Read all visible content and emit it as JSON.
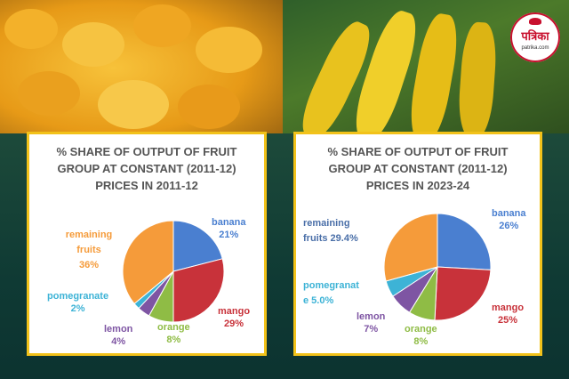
{
  "brand": {
    "name": "पत्रिका",
    "url": "patrika.com"
  },
  "colors": {
    "banana": "#4a7fd0",
    "mango": "#c8323a",
    "orange": "#8fbc45",
    "lemon": "#7e55a3",
    "pomegranate": "#3db3d6",
    "remaining": "#f59b3a",
    "card_border": "#f2c21a"
  },
  "chart_data": [
    {
      "type": "pie",
      "title": "% SHARE OF OUTPUT OF FRUIT GROUP AT CONSTANT (2011-12) PRICES IN 2011-12",
      "title_lines": [
        "% SHARE OF OUTPUT OF FRUIT",
        "GROUP AT CONSTANT (2011-12)",
        "PRICES IN 2011-12"
      ],
      "slices": [
        {
          "key": "banana",
          "name": "banana",
          "value": 21,
          "label": "21%"
        },
        {
          "key": "mango",
          "name": "mango",
          "value": 29,
          "label": "29%"
        },
        {
          "key": "orange",
          "name": "orange",
          "value": 8,
          "label": "8%"
        },
        {
          "key": "lemon",
          "name": "lemon",
          "value": 4,
          "label": "4%"
        },
        {
          "key": "pomegranate",
          "name": "pomegranate",
          "value": 2,
          "label": "2%"
        },
        {
          "key": "remaining",
          "name": "remaining fruits",
          "value": 36,
          "label": "36%"
        }
      ]
    },
    {
      "type": "pie",
      "title": "% SHARE OF OUTPUT OF FRUIT GROUP AT CONSTANT (2011-12) PRICES IN 2023-24",
      "title_lines": [
        "% SHARE OF OUTPUT OF FRUIT",
        "GROUP AT CONSTANT (2011-12)",
        "PRICES IN 2023-24"
      ],
      "slices": [
        {
          "key": "banana",
          "name": "banana",
          "value": 26,
          "label": "26%"
        },
        {
          "key": "mango",
          "name": "mango",
          "value": 25,
          "label": "25%"
        },
        {
          "key": "orange",
          "name": "orange",
          "value": 8,
          "label": "8%"
        },
        {
          "key": "lemon",
          "name": "lemon",
          "value": 7,
          "label": "7%"
        },
        {
          "key": "pomegranate",
          "name": "pomegranate",
          "value": 5.0,
          "label": "e 5.0%"
        },
        {
          "key": "remaining",
          "name": "remaining",
          "value": 29.4,
          "label": "fruits 29.4%"
        }
      ]
    }
  ]
}
